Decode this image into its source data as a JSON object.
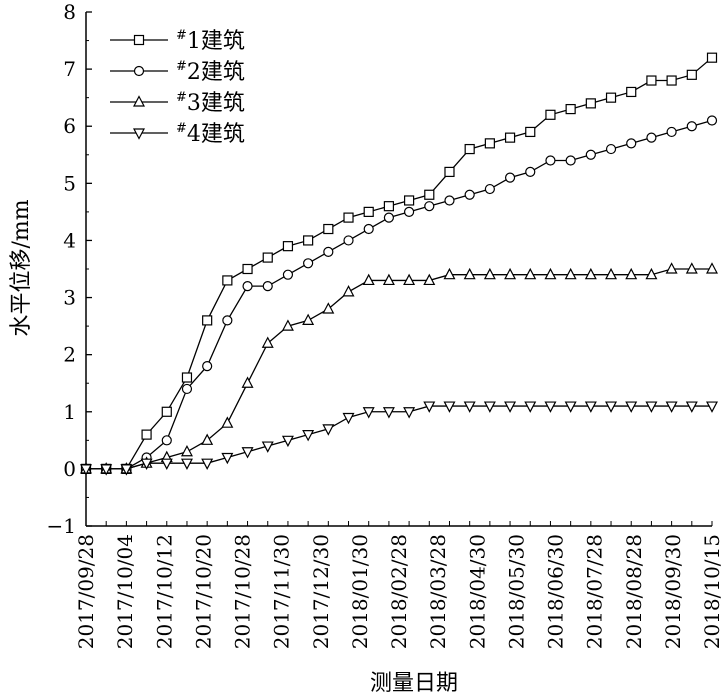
{
  "chart_data": {
    "type": "line",
    "title": "",
    "xlabel": "测量日期",
    "ylabel": "水平位移/mm",
    "ylim": [
      -1,
      8
    ],
    "yticks": [
      -1,
      0,
      1,
      2,
      3,
      4,
      5,
      6,
      7,
      8
    ],
    "xlim": [
      "2017/09/28",
      "2018/10/15"
    ],
    "xtick_labels": [
      "2017/09/28",
      "2017/10/04",
      "2017/10/12",
      "2017/10/20",
      "2017/10/28",
      "2017/11/30",
      "2017/12/30",
      "2018/01/30",
      "2018/02/28",
      "2018/03/28",
      "2018/04/30",
      "2018/05/30",
      "2018/06/30",
      "2018/07/28",
      "2018/08/28",
      "2018/09/30",
      "2018/10/15"
    ],
    "grid": false,
    "legend_position": "top-left",
    "series": [
      {
        "name": "#1建筑",
        "sup": "#",
        "label": "1建筑",
        "marker": "square",
        "values": [
          0,
          0,
          0,
          0.6,
          1.0,
          1.6,
          2.6,
          3.3,
          3.5,
          3.7,
          3.9,
          4.0,
          4.2,
          4.4,
          4.5,
          4.6,
          4.7,
          4.8,
          5.2,
          5.6,
          5.7,
          5.8,
          5.9,
          6.2,
          6.3,
          6.4,
          6.5,
          6.6,
          6.8,
          6.8,
          6.9,
          7.2
        ]
      },
      {
        "name": "#2建筑",
        "sup": "#",
        "label": "2建筑",
        "marker": "circle",
        "values": [
          0,
          0,
          0,
          0.2,
          0.5,
          1.4,
          1.8,
          2.6,
          3.2,
          3.2,
          3.4,
          3.6,
          3.8,
          4.0,
          4.2,
          4.4,
          4.5,
          4.6,
          4.7,
          4.8,
          4.9,
          5.1,
          5.2,
          5.4,
          5.4,
          5.5,
          5.6,
          5.7,
          5.8,
          5.9,
          6.0,
          6.1
        ]
      },
      {
        "name": "#3建筑",
        "sup": "#",
        "label": "3建筑",
        "marker": "triangle-up",
        "values": [
          0,
          0,
          0,
          0.1,
          0.2,
          0.3,
          0.5,
          0.8,
          1.5,
          2.2,
          2.5,
          2.6,
          2.8,
          3.1,
          3.3,
          3.3,
          3.3,
          3.3,
          3.4,
          3.4,
          3.4,
          3.4,
          3.4,
          3.4,
          3.4,
          3.4,
          3.4,
          3.4,
          3.4,
          3.5,
          3.5,
          3.5
        ]
      },
      {
        "name": "#4建筑",
        "sup": "#",
        "label": "4建筑",
        "marker": "triangle-down",
        "values": [
          0,
          0,
          0,
          0.1,
          0.1,
          0.1,
          0.1,
          0.2,
          0.3,
          0.4,
          0.5,
          0.6,
          0.7,
          0.9,
          1.0,
          1.0,
          1.0,
          1.1,
          1.1,
          1.1,
          1.1,
          1.1,
          1.1,
          1.1,
          1.1,
          1.1,
          1.1,
          1.1,
          1.1,
          1.1,
          1.1,
          1.1
        ]
      }
    ]
  }
}
